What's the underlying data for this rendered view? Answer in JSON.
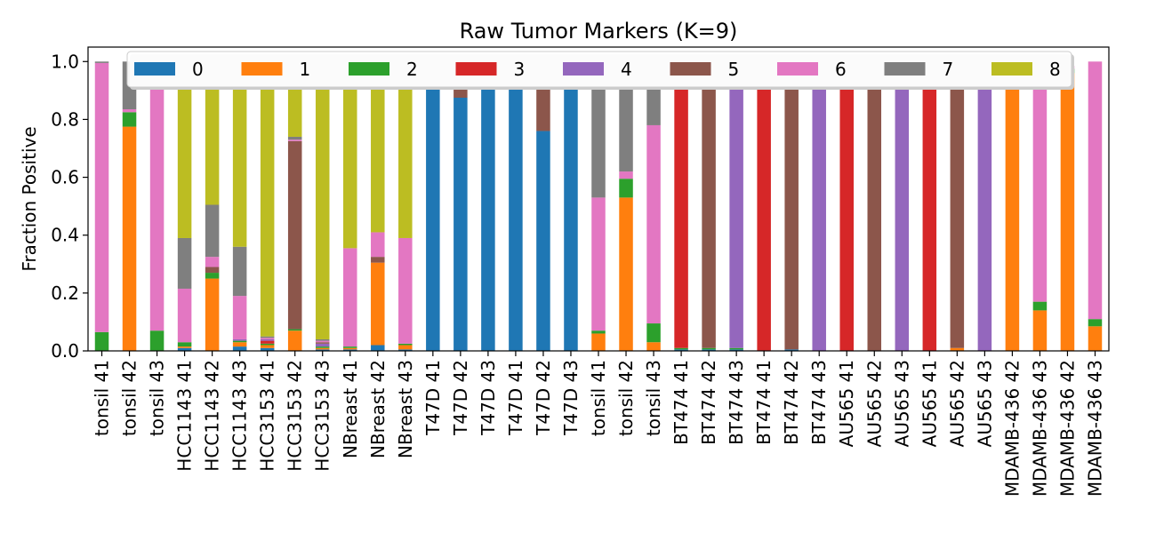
{
  "chart_data": {
    "type": "bar",
    "stacked": true,
    "title": "Raw Tumor Markers (K=9)",
    "xlabel": "",
    "ylabel": "Fraction Positive",
    "ylim": [
      0,
      1.05
    ],
    "yticks": [
      "0.0",
      "0.2",
      "0.4",
      "0.6",
      "0.8",
      "1.0"
    ],
    "grid": false,
    "legend_placement": "top-center",
    "categories": [
      "tonsil 41",
      "tonsil 42",
      "tonsil 43",
      "HCC1143 41",
      "HCC1143 42",
      "HCC1143 43",
      "HCC3153 41",
      "HCC3153 42",
      "HCC3153 43",
      "NBreast 41",
      "NBreast 42",
      "NBreast 43",
      "T47D 41",
      "T47D 42",
      "T47D 43",
      "T47D 41",
      "T47D 42",
      "T47D 43",
      "tonsil 41",
      "tonsil 42",
      "tonsil 43",
      "BT474 41",
      "BT474 42",
      "BT474 43",
      "BT474 41",
      "BT474 42",
      "BT474 43",
      "AU565 41",
      "AU565 42",
      "AU565 43",
      "AU565 41",
      "AU565 42",
      "AU565 43",
      "MDAMB-436 42",
      "MDAMB-436 43",
      "MDAMB-436 42",
      "MDAMB-436 43"
    ],
    "series": [
      {
        "name": "0",
        "color": "#1f77b4",
        "values": [
          0,
          0,
          0,
          0.01,
          0,
          0.015,
          0.01,
          0,
          0.005,
          0.005,
          0.02,
          0.005,
          1,
          0.875,
          1,
          1,
          0.76,
          1,
          0,
          0,
          0,
          0.005,
          0.005,
          0.005,
          0,
          0.005,
          0,
          0,
          0,
          0,
          0,
          0,
          0,
          0,
          0,
          0,
          0
        ]
      },
      {
        "name": "1",
        "color": "#ff7f0e",
        "values": [
          0,
          0.775,
          0,
          0.005,
          0.25,
          0.015,
          0.01,
          0.07,
          0.005,
          0.005,
          0.285,
          0.015,
          0,
          0,
          0,
          0,
          0,
          0,
          0.06,
          0.53,
          0.03,
          0,
          0,
          0,
          0,
          0,
          0,
          0,
          0,
          0,
          0,
          0.01,
          0,
          1,
          0.14,
          0.96,
          0.085
        ]
      },
      {
        "name": "2",
        "color": "#2ca02c",
        "values": [
          0.065,
          0.05,
          0.07,
          0.015,
          0.02,
          0.005,
          0.005,
          0.005,
          0.005,
          0.005,
          0,
          0.005,
          0,
          0,
          0,
          0,
          0,
          0,
          0.01,
          0.065,
          0.065,
          0.005,
          0.005,
          0.005,
          0,
          0,
          0,
          0,
          0,
          0,
          0,
          0,
          0,
          0,
          0.03,
          0.015,
          0.025
        ]
      },
      {
        "name": "3",
        "color": "#d62728",
        "values": [
          0,
          0,
          0,
          0,
          0,
          0,
          0.01,
          0,
          0,
          0,
          0,
          0,
          0,
          0,
          0,
          0,
          0,
          0,
          0,
          0,
          0,
          0.99,
          0,
          0,
          1,
          0,
          0,
          1,
          0,
          0,
          1,
          0,
          0,
          0,
          0,
          0,
          0
        ]
      },
      {
        "name": "4",
        "color": "#9467bd",
        "values": [
          0,
          0,
          0,
          0,
          0,
          0.005,
          0.005,
          0,
          0.01,
          0,
          0,
          0,
          0,
          0,
          0,
          0,
          0,
          0,
          0,
          0,
          0,
          0,
          0,
          0.99,
          0,
          0,
          1,
          0,
          0,
          1,
          0,
          0,
          1,
          0,
          0,
          0,
          0
        ]
      },
      {
        "name": "5",
        "color": "#8c564b",
        "values": [
          0,
          0,
          0,
          0,
          0.02,
          0,
          0,
          0.65,
          0.005,
          0,
          0.02,
          0,
          0,
          0.125,
          0,
          0,
          0.24,
          0,
          0,
          0,
          0,
          0,
          0.99,
          0,
          0,
          0.995,
          0,
          0,
          1,
          0,
          0,
          0.985,
          0,
          0,
          0,
          0,
          0
        ]
      },
      {
        "name": "6",
        "color": "#e377c2",
        "values": [
          0.93,
          0.01,
          0.93,
          0.185,
          0.035,
          0.15,
          0.005,
          0.005,
          0.005,
          0.34,
          0.085,
          0.365,
          0,
          0,
          0,
          0,
          0,
          0,
          0.46,
          0.025,
          0.685,
          0,
          0,
          0,
          0,
          0,
          0,
          0,
          0,
          0,
          0,
          0,
          0,
          0,
          0.83,
          0.01,
          0.89
        ]
      },
      {
        "name": "7",
        "color": "#7f7f7f",
        "values": [
          0.005,
          0.165,
          0,
          0.175,
          0.18,
          0.17,
          0.005,
          0.01,
          0.005,
          0,
          0,
          0,
          0,
          0,
          0,
          0,
          0,
          0,
          0.47,
          0.38,
          0.22,
          0,
          0,
          0,
          0,
          0,
          0,
          0,
          0,
          0,
          0,
          0,
          0,
          0,
          0,
          0,
          0
        ]
      },
      {
        "name": "8",
        "color": "#bcbd22",
        "values": [
          0,
          0,
          0,
          0.61,
          0.495,
          0.645,
          0.955,
          0.26,
          0.965,
          0.645,
          0.59,
          0.615,
          0,
          0,
          0,
          0,
          0,
          0,
          0,
          0,
          0,
          0,
          0,
          0,
          0,
          0,
          0,
          0,
          0,
          0,
          0,
          0,
          0,
          0,
          0,
          0,
          0
        ]
      }
    ]
  }
}
